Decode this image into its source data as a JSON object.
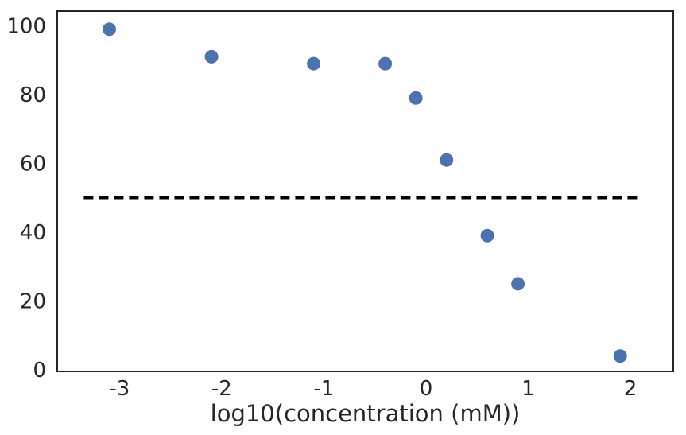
{
  "figure": {
    "background_color": "#ffffff",
    "text_color": "#262626",
    "spine_color": "#262626"
  },
  "chart_data": {
    "type": "scatter",
    "title": "",
    "xlabel": "log10(concentration (mM))",
    "ylabel": "",
    "points": [
      {
        "x": -3.1,
        "y": 99
      },
      {
        "x": -2.1,
        "y": 91
      },
      {
        "x": -1.1,
        "y": 89
      },
      {
        "x": -0.4,
        "y": 89
      },
      {
        "x": -0.1,
        "y": 79
      },
      {
        "x": 0.2,
        "y": 61
      },
      {
        "x": 0.6,
        "y": 39
      },
      {
        "x": 0.9,
        "y": 25
      },
      {
        "x": 1.9,
        "y": 4
      }
    ],
    "xticks": [
      -3,
      -2,
      -1,
      0,
      1,
      2
    ],
    "yticks": [
      0,
      20,
      40,
      60,
      80,
      100
    ],
    "xlim": [
      -3.61,
      2.42
    ],
    "ylim": [
      -0.46,
      104.28
    ],
    "grid": false,
    "legend": null,
    "reference_line": {
      "y": 50,
      "x_start": -3.35,
      "x_end": 2.12,
      "style": "dashed",
      "color": "#000000"
    },
    "marker_color": "#4c72b0",
    "marker_radius_px": 8.5,
    "box_spines": true
  }
}
